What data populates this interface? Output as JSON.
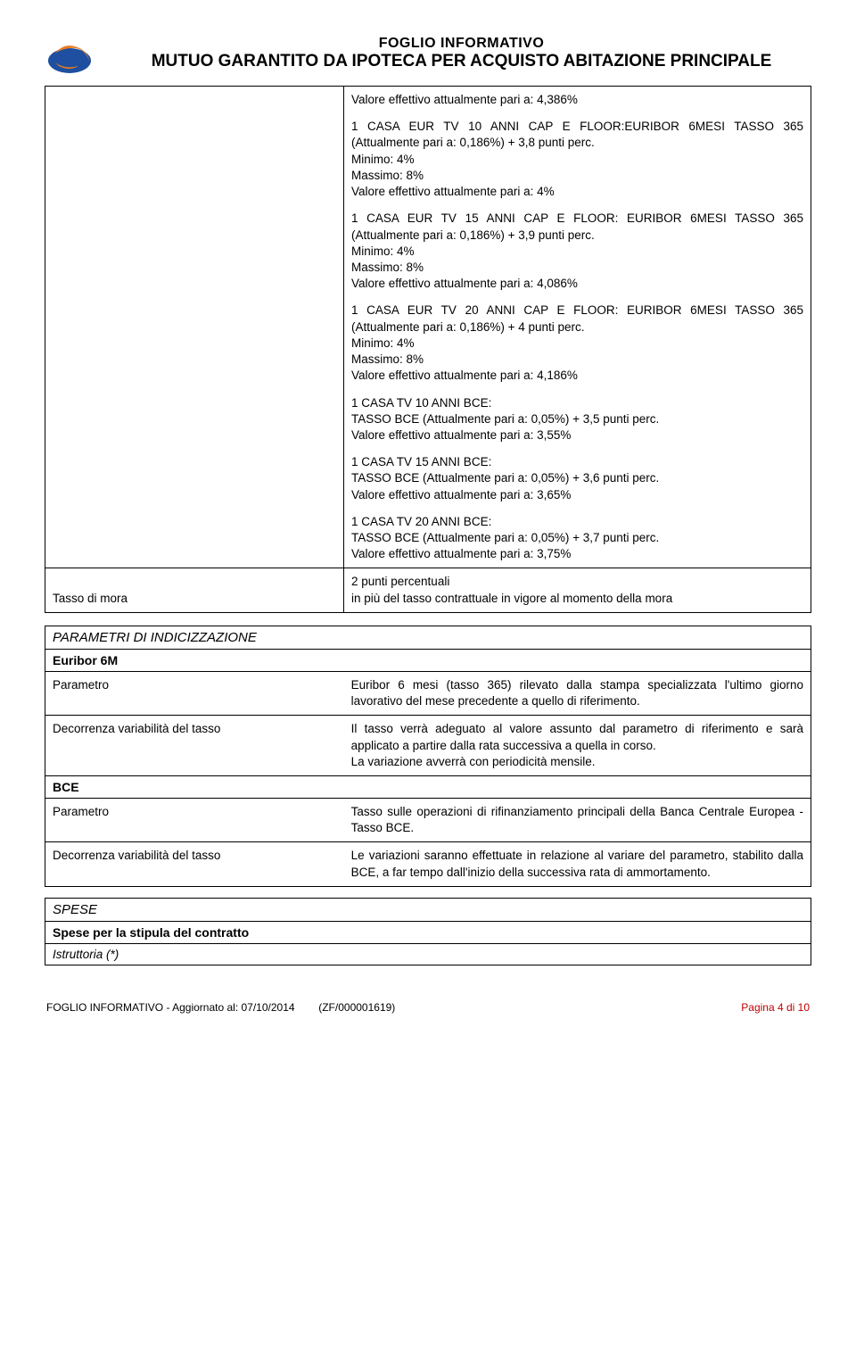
{
  "header": {
    "sub": "FOGLIO INFORMATIVO",
    "main": "MUTUO GARANTITO DA IPOTECA PER ACQUISTO ABITAZIONE PRINCIPALE"
  },
  "top_effective": "Valore effettivo attualmente pari a:  4,386%",
  "blocks": [
    {
      "title": "1 CASA EUR TV 10 ANNI CAP E FLOOR:EURIBOR 6MESI TASSO 365 (Attualmente pari a:  0,186%) + 3,8 punti perc.",
      "lines": [
        "Minimo:  4%",
        "Massimo:  8%",
        "Valore effettivo attualmente pari a:  4%"
      ]
    },
    {
      "title": "1 CASA EUR TV 15 ANNI CAP E FLOOR: EURIBOR 6MESI TASSO 365 (Attualmente pari a:  0,186%) + 3,9 punti perc.",
      "lines": [
        "Minimo:  4%",
        "Massimo:  8%",
        "Valore effettivo attualmente pari a:  4,086%"
      ]
    },
    {
      "title": "1 CASA EUR TV 20 ANNI CAP E FLOOR: EURIBOR 6MESI TASSO 365 (Attualmente pari a:  0,186%) + 4 punti perc.",
      "lines": [
        "Minimo:  4%",
        "Massimo:  8%",
        "Valore effettivo attualmente pari a:  4,186%"
      ]
    },
    {
      "title": "1 CASA TV 10 ANNI BCE:",
      "lines": [
        "TASSO BCE (Attualmente pari a:  0,05%) + 3,5 punti perc.",
        "Valore effettivo attualmente pari a:  3,55%"
      ]
    },
    {
      "title": "1 CASA TV 15 ANNI BCE:",
      "lines": [
        "TASSO BCE (Attualmente pari a:  0,05%) + 3,6 punti perc.",
        "Valore effettivo attualmente pari a:  3,65%"
      ]
    },
    {
      "title": "1 CASA TV 20 ANNI BCE:",
      "lines": [
        "TASSO BCE (Attualmente pari a:  0,05%) + 3,7 punti perc.",
        "Valore effettivo attualmente pari a:  3,75%"
      ]
    }
  ],
  "mora": {
    "label": "Tasso di mora",
    "value_l1": "2 punti percentuali",
    "value_l2": "in più del tasso contrattuale in vigore al momento della mora"
  },
  "param_section": {
    "title": "PARAMETRI DI INDICIZZAZIONE",
    "euribor": {
      "heading": "Euribor 6M",
      "rows": [
        {
          "label": "Parametro",
          "text": "Euribor 6 mesi (tasso 365) rilevato dalla stampa specializzata l'ultimo giorno lavorativo del mese precedente a quello di riferimento."
        },
        {
          "label": "Decorrenza variabilità del tasso",
          "text": "Il tasso verrà adeguato al valore assunto dal parametro di riferimento e sarà applicato a partire dalla rata successiva a quella in corso.\nLa variazione avverrà con periodicità mensile."
        }
      ]
    },
    "bce": {
      "heading": "BCE",
      "rows": [
        {
          "label": "Parametro",
          "text": "Tasso sulle operazioni di rifinanziamento principali della Banca Centrale Europea - Tasso BCE."
        },
        {
          "label": "Decorrenza variabilità del tasso",
          "text": "Le variazioni saranno effettuate in relazione al variare del parametro, stabilito dalla BCE, a far tempo dall'inizio della successiva rata di ammortamento."
        }
      ]
    }
  },
  "spese": {
    "title": "SPESE",
    "sub": "Spese per la stipula del contratto",
    "row": "Istruttoria  (*)"
  },
  "footer": {
    "left": "FOGLIO INFORMATIVO - Aggiornato al: 07/10/2014",
    "mid": "(ZF/000001619)",
    "right": "Pagina 4 di 10"
  }
}
